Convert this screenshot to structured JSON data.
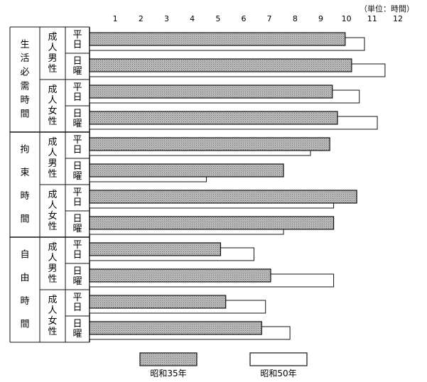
{
  "unit_label": "（単位：時間）",
  "chart_data": {
    "type": "bar",
    "orientation": "horizontal",
    "unit": "単位：時間",
    "xlim": [
      0,
      12
    ],
    "xticks": [
      1,
      2,
      3,
      4,
      5,
      6,
      7,
      8,
      9,
      10,
      11,
      12
    ],
    "grid": false,
    "legend_position": "bottom",
    "series": [
      {
        "name": "昭和35年",
        "fill": "#b4b4b4",
        "pattern": "dotted"
      },
      {
        "name": "昭和50年",
        "fill": "#ffffff"
      }
    ],
    "groups": [
      {
        "category": "生活必需時間",
        "persons": [
          {
            "label": "成人男性",
            "rows": [
              {
                "day": "平日",
                "values": [
                  9.95,
                  10.7
                ]
              },
              {
                "day": "日曜",
                "values": [
                  10.2,
                  11.5
                ]
              }
            ]
          },
          {
            "label": "成人女性",
            "rows": [
              {
                "day": "平日",
                "values": [
                  9.45,
                  10.5
                ]
              },
              {
                "day": "日曜",
                "values": [
                  9.65,
                  11.2
                ]
              }
            ]
          }
        ]
      },
      {
        "category": "拘束時間",
        "persons": [
          {
            "label": "成人男性",
            "rows": [
              {
                "day": "平日",
                "values": [
                  9.35,
                  8.6
                ]
              },
              {
                "day": "日曜",
                "values": [
                  7.55,
                  4.55
                ]
              }
            ]
          },
          {
            "label": "成人女性",
            "rows": [
              {
                "day": "平日",
                "values": [
                  10.4,
                  9.5
                ]
              },
              {
                "day": "日曜",
                "values": [
                  9.5,
                  7.55
                ]
              }
            ]
          }
        ]
      },
      {
        "category": "自由時間",
        "persons": [
          {
            "label": "成人男性",
            "rows": [
              {
                "day": "平日",
                "values": [
                  5.1,
                  6.4
                ]
              },
              {
                "day": "日曜",
                "values": [
                  7.05,
                  9.5
                ]
              }
            ]
          },
          {
            "label": "成人女性",
            "rows": [
              {
                "day": "平日",
                "values": [
                  5.3,
                  6.85
                ]
              },
              {
                "day": "日曜",
                "values": [
                  6.7,
                  7.8
                ]
              }
            ]
          }
        ]
      }
    ]
  }
}
